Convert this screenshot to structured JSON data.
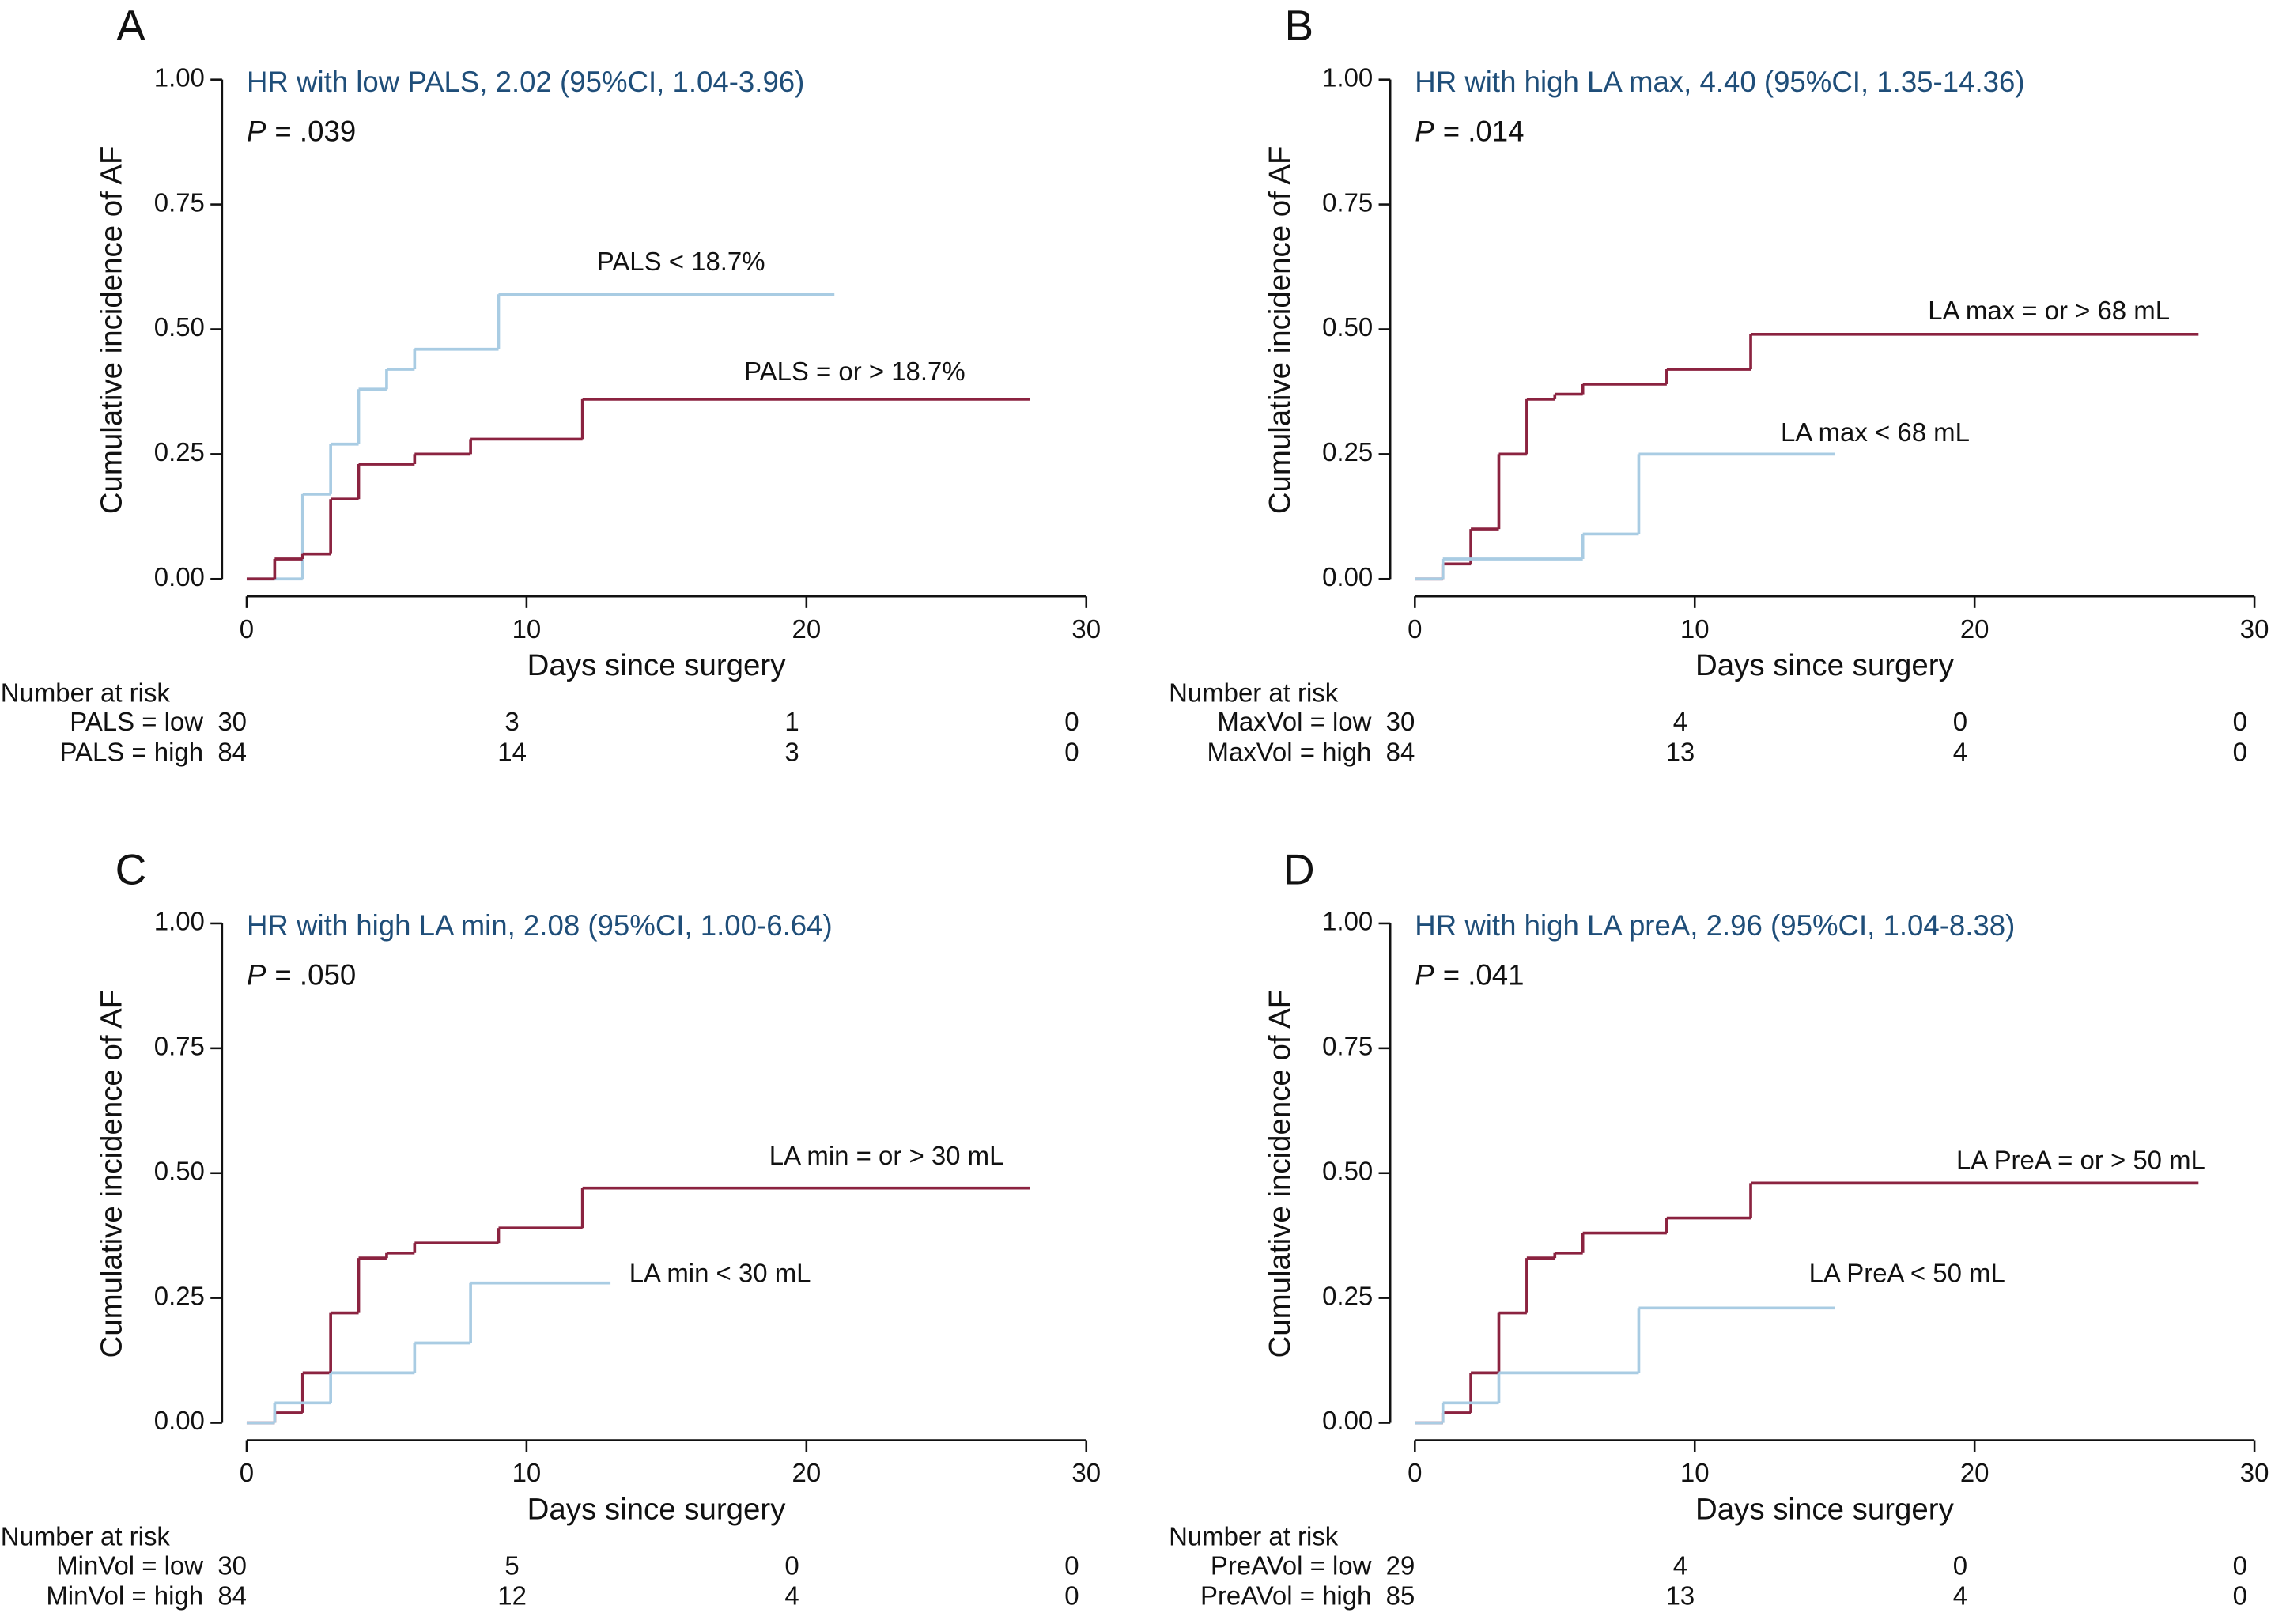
{
  "chart_data": [
    {
      "type": "step",
      "panel_label": "A",
      "annotation": "HR with low PALS, 2.02 (95%CI, 1.04-3.96)",
      "stat_label": "P",
      "stat_value": "= .039",
      "xlabel": "Days since surgery",
      "ylabel": "Cumulative incidence of AF",
      "xlim": [
        0,
        30
      ],
      "xticks": [
        0,
        10,
        20,
        30
      ],
      "ylim": [
        0,
        1
      ],
      "yticks": [
        {
          "value": 0,
          "label": "0.00"
        },
        {
          "value": 0.25,
          "label": "0.25"
        },
        {
          "value": 0.5,
          "label": "0.50"
        },
        {
          "value": 0.75,
          "label": "0.75"
        },
        {
          "value": 1,
          "label": "1.00"
        }
      ],
      "series": [
        {
          "name": "PALS < 18.7%",
          "color": "#a9cce3",
          "x": [
            0,
            2,
            3,
            4,
            5,
            6,
            9,
            21
          ],
          "values": [
            0,
            0.17,
            0.27,
            0.38,
            0.42,
            0.46,
            0.57,
            0.57
          ]
        },
        {
          "name": "PALS = or > 18.7%",
          "color": "#8b2340",
          "x": [
            0,
            1,
            2,
            3,
            4,
            6,
            8,
            12,
            28
          ],
          "values": [
            0,
            0.04,
            0.05,
            0.16,
            0.23,
            0.25,
            0.28,
            0.36,
            0.36
          ]
        }
      ],
      "risk_table": {
        "title": "Number at risk",
        "rows": [
          {
            "label": "PALS = low",
            "values": [
              30,
              3,
              1,
              0
            ]
          },
          {
            "label": "PALS = high",
            "values": [
              84,
              14,
              3,
              0
            ]
          }
        ]
      }
    },
    {
      "type": "step",
      "panel_label": "B",
      "annotation": "HR with high LA max, 4.40 (95%CI, 1.35-14.36)",
      "stat_label": "P",
      "stat_value": "= .014",
      "xlabel": "Days since surgery",
      "ylabel": "Cumulative incidence of AF",
      "xlim": [
        0,
        30
      ],
      "xticks": [
        0,
        10,
        20,
        30
      ],
      "ylim": [
        0,
        1
      ],
      "yticks": [
        {
          "value": 0,
          "label": "0.00"
        },
        {
          "value": 0.25,
          "label": "0.25"
        },
        {
          "value": 0.5,
          "label": "0.50"
        },
        {
          "value": 0.75,
          "label": "0.75"
        },
        {
          "value": 1,
          "label": "1.00"
        }
      ],
      "series": [
        {
          "name": "LA max = or > 68 mL",
          "color": "#8b2340",
          "x": [
            0,
            1,
            2,
            3,
            4,
            5,
            6,
            9,
            12,
            28
          ],
          "values": [
            0,
            0.03,
            0.1,
            0.25,
            0.36,
            0.37,
            0.39,
            0.42,
            0.49,
            0.49
          ]
        },
        {
          "name": "LA max < 68 mL",
          "color": "#a9cce3",
          "x": [
            0,
            1,
            6,
            8,
            15
          ],
          "values": [
            0,
            0.04,
            0.09,
            0.25,
            0.25
          ]
        }
      ],
      "risk_table": {
        "title": "Number at risk",
        "rows": [
          {
            "label": "MaxVol = low",
            "values": [
              30,
              4,
              0,
              0
            ]
          },
          {
            "label": "MaxVol = high",
            "values": [
              84,
              13,
              4,
              0
            ]
          }
        ]
      }
    },
    {
      "type": "step",
      "panel_label": "C",
      "annotation": "HR with high LA min, 2.08 (95%CI, 1.00-6.64)",
      "stat_label": "P",
      "stat_value": "= .050",
      "xlabel": "Days since surgery",
      "ylabel": "Cumulative incidence of AF",
      "xlim": [
        0,
        30
      ],
      "xticks": [
        0,
        10,
        20,
        30
      ],
      "ylim": [
        0,
        1
      ],
      "yticks": [
        {
          "value": 0,
          "label": "0.00"
        },
        {
          "value": 0.25,
          "label": "0.25"
        },
        {
          "value": 0.5,
          "label": "0.50"
        },
        {
          "value": 0.75,
          "label": "0.75"
        },
        {
          "value": 1,
          "label": "1.00"
        }
      ],
      "series": [
        {
          "name": "LA min = or > 30 mL",
          "color": "#8b2340",
          "x": [
            0,
            1,
            2,
            3,
            4,
            5,
            6,
            9,
            12,
            28
          ],
          "values": [
            0,
            0.02,
            0.1,
            0.22,
            0.33,
            0.34,
            0.36,
            0.39,
            0.47,
            0.47
          ]
        },
        {
          "name": "LA min < 30 mL",
          "color": "#a9cce3",
          "x": [
            0,
            1,
            3,
            6,
            8,
            13
          ],
          "values": [
            0,
            0.04,
            0.1,
            0.16,
            0.28,
            0.28
          ]
        }
      ],
      "risk_table": {
        "title": "Number at risk",
        "rows": [
          {
            "label": "MinVol = low",
            "values": [
              30,
              5,
              0,
              0
            ]
          },
          {
            "label": "MinVol = high",
            "values": [
              84,
              12,
              4,
              0
            ]
          }
        ]
      }
    },
    {
      "type": "step",
      "panel_label": "D",
      "annotation": "HR with high LA preA, 2.96 (95%CI, 1.04-8.38)",
      "stat_label": "P",
      "stat_value": "= .041",
      "xlabel": "Days since surgery",
      "ylabel": "Cumulative incidence of AF",
      "xlim": [
        0,
        30
      ],
      "xticks": [
        0,
        10,
        20,
        30
      ],
      "ylim": [
        0,
        1
      ],
      "yticks": [
        {
          "value": 0,
          "label": "0.00"
        },
        {
          "value": 0.25,
          "label": "0.25"
        },
        {
          "value": 0.5,
          "label": "0.50"
        },
        {
          "value": 0.75,
          "label": "0.75"
        },
        {
          "value": 1,
          "label": "1.00"
        }
      ],
      "series": [
        {
          "name": "LA PreA = or > 50 mL",
          "color": "#8b2340",
          "x": [
            0,
            1,
            2,
            3,
            4,
            5,
            6,
            9,
            12,
            28
          ],
          "values": [
            0,
            0.02,
            0.1,
            0.22,
            0.33,
            0.34,
            0.38,
            0.41,
            0.48,
            0.48
          ]
        },
        {
          "name": "LA PreA < 50 mL",
          "color": "#a9cce3",
          "x": [
            0,
            1,
            3,
            8,
            15
          ],
          "values": [
            0,
            0.04,
            0.1,
            0.23,
            0.23
          ]
        }
      ],
      "risk_table": {
        "title": "Number at risk",
        "rows": [
          {
            "label": "PreAVol = low",
            "values": [
              29,
              4,
              0,
              0
            ]
          },
          {
            "label": "PreAVol = high",
            "values": [
              85,
              13,
              4,
              0
            ]
          }
        ]
      }
    }
  ]
}
